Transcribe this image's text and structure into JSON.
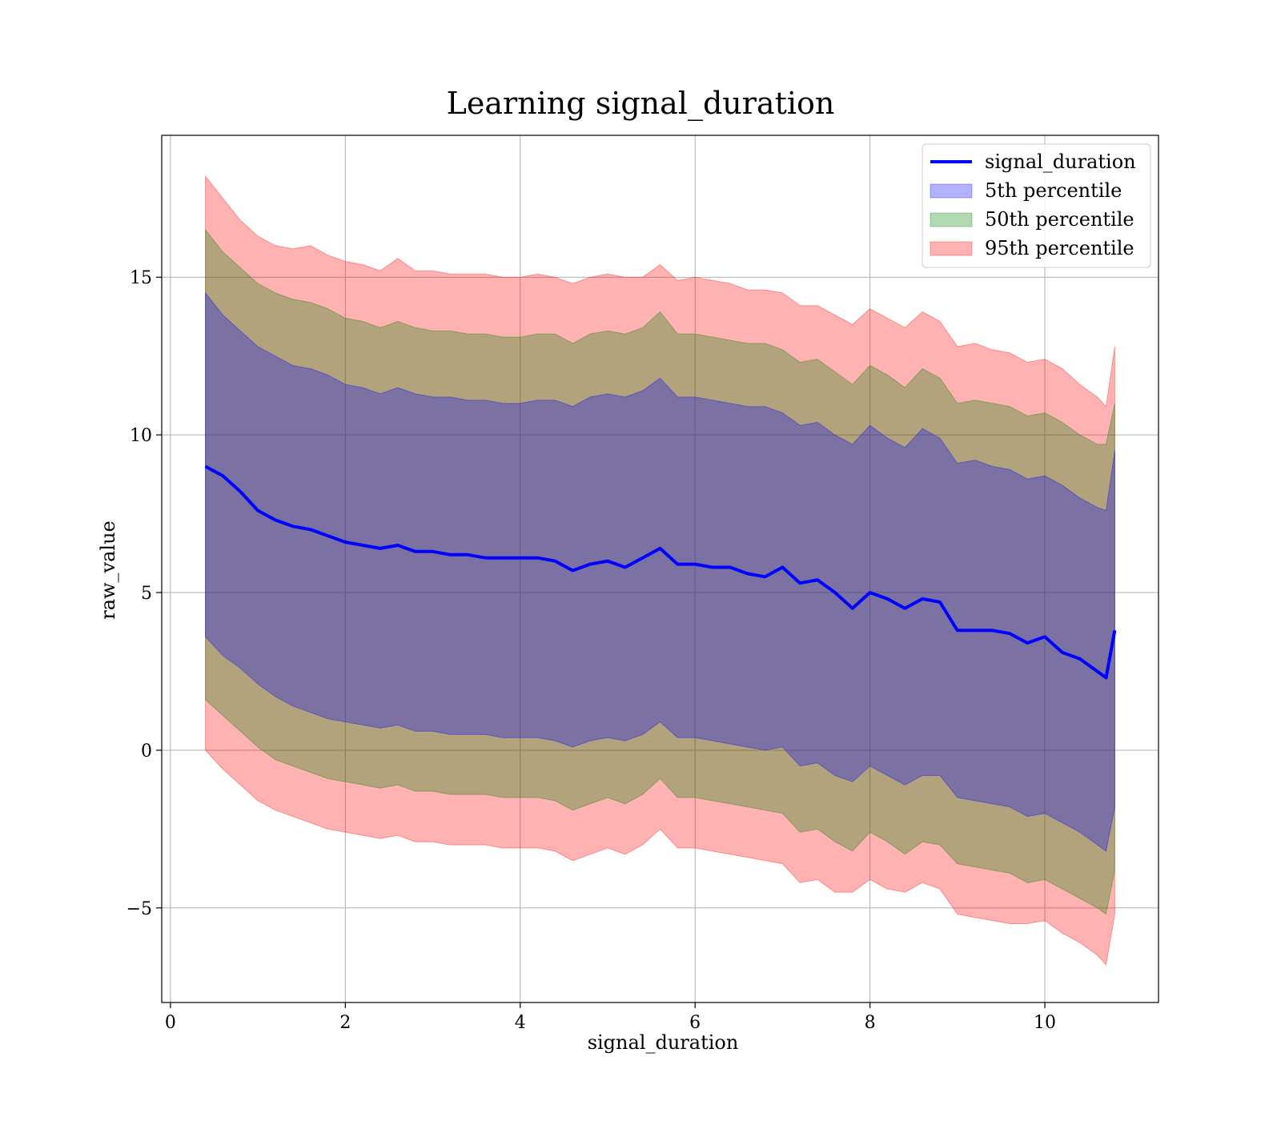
{
  "chart_data": {
    "type": "area",
    "title": "Learning signal_duration",
    "xlabel": "signal_duration",
    "ylabel": "raw_value",
    "xlim": [
      -0.1,
      11.3
    ],
    "ylim": [
      -8,
      19.5
    ],
    "xticks": [
      0,
      2,
      4,
      6,
      8,
      10
    ],
    "yticks": [
      -5,
      0,
      5,
      10,
      15
    ],
    "xtick_labels": [
      "0",
      "2",
      "4",
      "6",
      "8",
      "10"
    ],
    "ytick_labels": [
      "−5",
      "0",
      "5",
      "10",
      "15"
    ],
    "grid": true,
    "legend_position": "top-right",
    "legend": [
      {
        "label": "signal_duration",
        "kind": "line",
        "color": "#0000ff"
      },
      {
        "label": "5th percentile",
        "kind": "patch",
        "color": "#0000ff"
      },
      {
        "label": "50th percentile",
        "kind": "patch",
        "color": "#008000"
      },
      {
        "label": "95th percentile",
        "kind": "patch",
        "color": "#ff0000"
      }
    ],
    "x": [
      0.4,
      0.6,
      0.8,
      1.0,
      1.2,
      1.4,
      1.6,
      1.8,
      2.0,
      2.2,
      2.4,
      2.6,
      2.8,
      3.0,
      3.2,
      3.4,
      3.6,
      3.8,
      4.0,
      4.2,
      4.4,
      4.6,
      4.8,
      5.0,
      5.2,
      5.4,
      5.6,
      5.8,
      6.0,
      6.2,
      6.4,
      6.6,
      6.8,
      7.0,
      7.2,
      7.4,
      7.6,
      7.8,
      8.0,
      8.2,
      8.4,
      8.6,
      8.8,
      9.0,
      9.2,
      9.4,
      9.6,
      9.8,
      10.0,
      10.2,
      10.4,
      10.6,
      10.7,
      10.8
    ],
    "series": [
      {
        "name": "signal_duration",
        "type": "line",
        "color": "#0000ff",
        "values": [
          9.0,
          8.7,
          8.2,
          7.6,
          7.3,
          7.1,
          7.0,
          6.8,
          6.6,
          6.5,
          6.4,
          6.5,
          6.3,
          6.3,
          6.2,
          6.2,
          6.1,
          6.1,
          6.1,
          6.1,
          6.0,
          5.7,
          5.9,
          6.0,
          5.8,
          6.1,
          6.4,
          5.9,
          5.9,
          5.8,
          5.8,
          5.6,
          5.5,
          5.8,
          5.3,
          5.4,
          5.0,
          4.5,
          5.0,
          4.8,
          4.5,
          4.8,
          4.7,
          3.8,
          3.8,
          3.8,
          3.7,
          3.4,
          3.6,
          3.1,
          2.9,
          2.5,
          2.3,
          3.8
        ]
      },
      {
        "name": "5th percentile",
        "type": "band",
        "color": "#0000ff",
        "opacity": 0.3,
        "upper": [
          14.5,
          13.8,
          13.3,
          12.8,
          12.5,
          12.2,
          12.1,
          11.9,
          11.6,
          11.5,
          11.3,
          11.5,
          11.3,
          11.2,
          11.2,
          11.1,
          11.1,
          11.0,
          11.0,
          11.1,
          11.1,
          10.9,
          11.2,
          11.3,
          11.2,
          11.4,
          11.8,
          11.2,
          11.2,
          11.1,
          11.0,
          10.9,
          10.9,
          10.7,
          10.3,
          10.4,
          10.0,
          9.7,
          10.3,
          9.9,
          9.6,
          10.2,
          9.9,
          9.1,
          9.2,
          9.0,
          8.9,
          8.6,
          8.7,
          8.4,
          8.0,
          7.7,
          7.6,
          9.5
        ],
        "lower": [
          3.6,
          3.0,
          2.6,
          2.1,
          1.7,
          1.4,
          1.2,
          1.0,
          0.9,
          0.8,
          0.7,
          0.8,
          0.6,
          0.6,
          0.5,
          0.5,
          0.5,
          0.4,
          0.4,
          0.4,
          0.3,
          0.1,
          0.3,
          0.4,
          0.3,
          0.5,
          0.9,
          0.4,
          0.4,
          0.3,
          0.2,
          0.1,
          0.0,
          0.1,
          -0.5,
          -0.4,
          -0.8,
          -1.0,
          -0.5,
          -0.8,
          -1.1,
          -0.8,
          -0.8,
          -1.5,
          -1.6,
          -1.7,
          -1.8,
          -2.1,
          -2.0,
          -2.3,
          -2.6,
          -3.0,
          -3.2,
          -1.8
        ]
      },
      {
        "name": "50th percentile",
        "type": "band",
        "color": "#008000",
        "opacity": 0.3,
        "upper": [
          16.5,
          15.8,
          15.3,
          14.8,
          14.5,
          14.3,
          14.2,
          14.0,
          13.7,
          13.6,
          13.4,
          13.6,
          13.4,
          13.3,
          13.3,
          13.2,
          13.2,
          13.1,
          13.1,
          13.2,
          13.2,
          12.9,
          13.2,
          13.3,
          13.2,
          13.4,
          13.9,
          13.2,
          13.2,
          13.1,
          13.0,
          12.9,
          12.9,
          12.7,
          12.3,
          12.4,
          12.0,
          11.6,
          12.2,
          11.9,
          11.5,
          12.1,
          11.8,
          11.0,
          11.1,
          11.0,
          10.9,
          10.6,
          10.7,
          10.4,
          10.0,
          9.7,
          9.7,
          11.0
        ],
        "lower": [
          1.6,
          1.1,
          0.6,
          0.1,
          -0.3,
          -0.5,
          -0.7,
          -0.9,
          -1.0,
          -1.1,
          -1.2,
          -1.1,
          -1.3,
          -1.3,
          -1.4,
          -1.4,
          -1.4,
          -1.5,
          -1.5,
          -1.5,
          -1.6,
          -1.9,
          -1.7,
          -1.5,
          -1.7,
          -1.4,
          -0.9,
          -1.5,
          -1.5,
          -1.6,
          -1.7,
          -1.8,
          -1.9,
          -2.0,
          -2.6,
          -2.5,
          -2.9,
          -3.2,
          -2.6,
          -2.9,
          -3.3,
          -2.9,
          -3.0,
          -3.6,
          -3.7,
          -3.8,
          -3.9,
          -4.2,
          -4.1,
          -4.4,
          -4.7,
          -5.0,
          -5.2,
          -3.8
        ]
      },
      {
        "name": "95th percentile",
        "type": "band",
        "color": "#ff0000",
        "opacity": 0.3,
        "upper": [
          18.2,
          17.5,
          16.8,
          16.3,
          16.0,
          15.9,
          16.0,
          15.7,
          15.5,
          15.4,
          15.2,
          15.6,
          15.2,
          15.2,
          15.1,
          15.1,
          15.1,
          15.0,
          15.0,
          15.1,
          15.0,
          14.8,
          15.0,
          15.1,
          15.0,
          15.0,
          15.4,
          14.9,
          15.0,
          14.9,
          14.8,
          14.6,
          14.6,
          14.5,
          14.1,
          14.1,
          13.8,
          13.5,
          14.0,
          13.7,
          13.4,
          13.9,
          13.6,
          12.8,
          12.9,
          12.7,
          12.6,
          12.3,
          12.4,
          12.1,
          11.6,
          11.2,
          10.9,
          12.8
        ],
        "lower": [
          0.0,
          -0.6,
          -1.1,
          -1.6,
          -1.9,
          -2.1,
          -2.3,
          -2.5,
          -2.6,
          -2.7,
          -2.8,
          -2.7,
          -2.9,
          -2.9,
          -3.0,
          -3.0,
          -3.0,
          -3.1,
          -3.1,
          -3.1,
          -3.2,
          -3.5,
          -3.3,
          -3.1,
          -3.3,
          -3.0,
          -2.5,
          -3.1,
          -3.1,
          -3.2,
          -3.3,
          -3.4,
          -3.5,
          -3.6,
          -4.2,
          -4.1,
          -4.5,
          -4.5,
          -4.1,
          -4.4,
          -4.5,
          -4.2,
          -4.4,
          -5.2,
          -5.3,
          -5.4,
          -5.5,
          -5.5,
          -5.4,
          -5.8,
          -6.1,
          -6.5,
          -6.8,
          -5.2
        ]
      }
    ]
  }
}
